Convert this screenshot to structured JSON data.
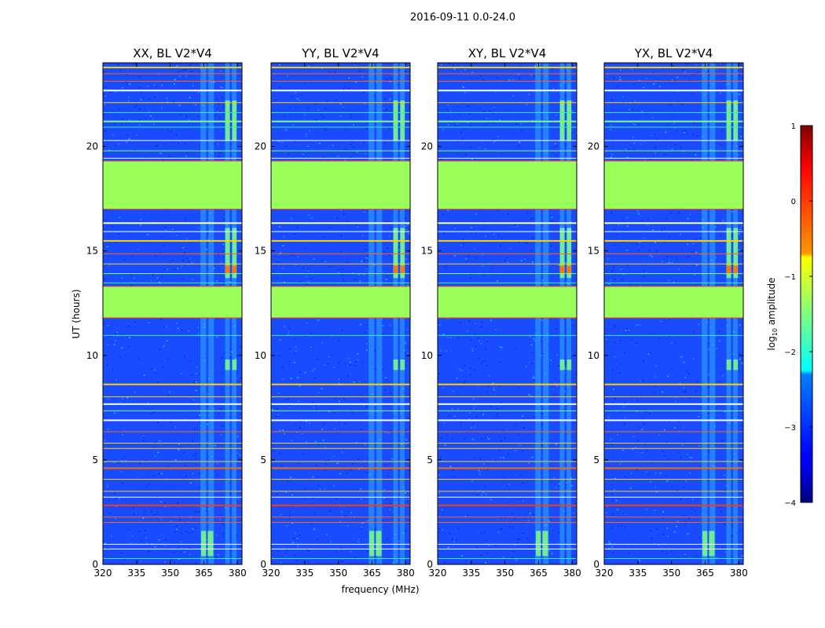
{
  "figure": {
    "suptitle": "2016-09-11 0.0-24.0"
  },
  "chart_data": {
    "type": "heatmap",
    "title": "2016-09-11 0.0-24.0",
    "xlabel": "frequency (MHz)",
    "ylabel": "UT (hours)",
    "xlim": [
      320,
      382
    ],
    "ylim": [
      0,
      24
    ],
    "xticks": [
      "320",
      "335",
      "350",
      "365",
      "380"
    ],
    "yticks": [
      "0",
      "5",
      "10",
      "15",
      "20"
    ],
    "panels": [
      {
        "title": "XX, BL V2*V4"
      },
      {
        "title": "YY, BL V2*V4"
      },
      {
        "title": "XY, BL V2*V4"
      },
      {
        "title": "YX, BL V2*V4"
      }
    ],
    "flagged_time_ranges_hours": [
      [
        11.8,
        13.3
      ],
      [
        17.0,
        19.3
      ]
    ],
    "colorbar": {
      "label": "log10 amplitude",
      "label_text": "log",
      "label_sub": "10",
      "label_rest": " amplitude",
      "range": [
        -4,
        1
      ],
      "ticks": [
        "1",
        "0",
        "−1",
        "−2",
        "−3",
        "−4"
      ],
      "colormap": "jet"
    }
  }
}
